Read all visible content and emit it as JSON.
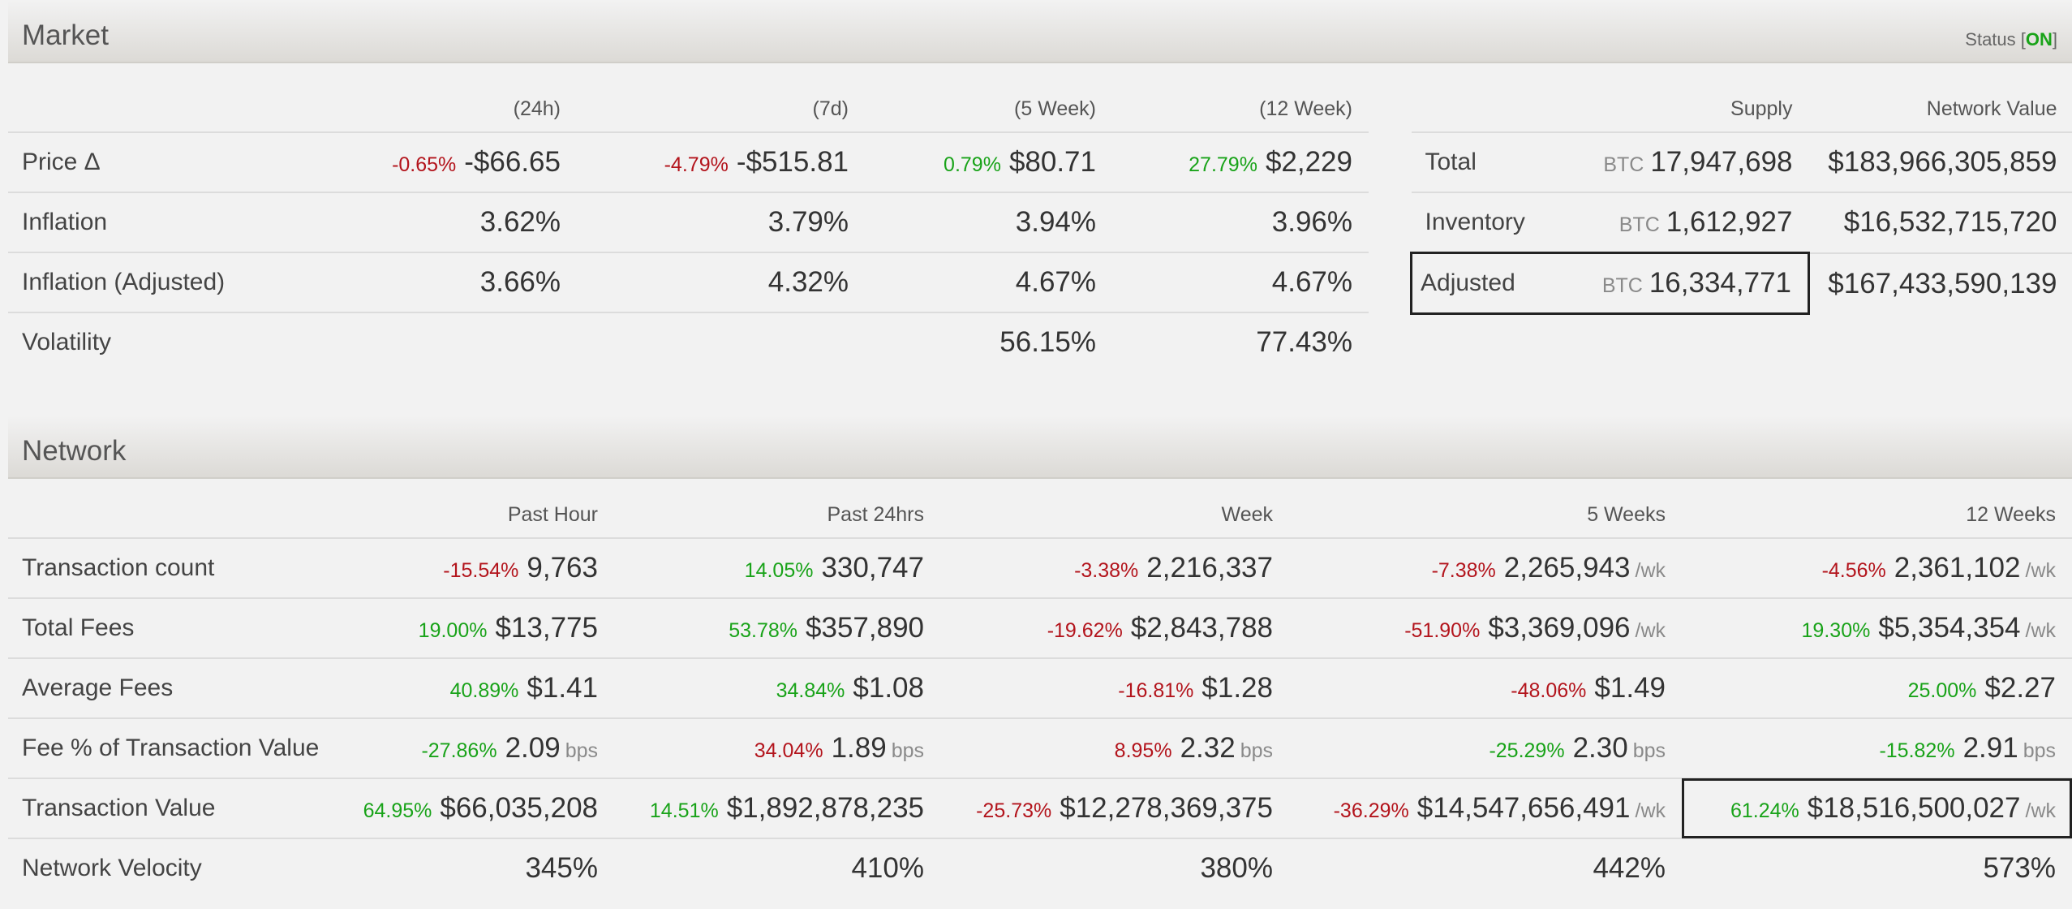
{
  "market": {
    "title": "Market",
    "status_prefix": "Status [",
    "status_value": "ON",
    "status_suffix": "]",
    "columns": [
      "(24h)",
      "(7d)",
      "(5 Week)",
      "(12 Week)"
    ],
    "rows": {
      "price": {
        "label": "Price Δ",
        "cells": [
          {
            "pct": "-0.65%",
            "value": "-$66.65"
          },
          {
            "pct": "-4.79%",
            "value": "-$515.81"
          },
          {
            "pct": "0.79%",
            "value": "$80.71"
          },
          {
            "pct": "27.79%",
            "value": "$2,229"
          }
        ]
      },
      "inflation": {
        "label": "Inflation",
        "values": [
          "3.62%",
          "3.79%",
          "3.94%",
          "3.96%"
        ]
      },
      "inflation_adjusted": {
        "label": "Inflation (Adjusted)",
        "values": [
          "3.66%",
          "4.32%",
          "4.67%",
          "4.67%"
        ]
      },
      "volatility": {
        "label": "Volatility",
        "values": [
          "",
          "",
          "56.15%",
          "77.43%"
        ]
      }
    }
  },
  "supply": {
    "columns": [
      "Supply",
      "Network Value"
    ],
    "unit": "BTC",
    "rows": {
      "total": {
        "label": "Total",
        "supply": "17,947,698",
        "network_value": "$183,966,305,859"
      },
      "inventory": {
        "label": "Inventory",
        "supply": "1,612,927",
        "network_value": "$16,532,715,720"
      },
      "adjusted": {
        "label": "Adjusted",
        "supply": "16,334,771",
        "network_value": "$167,433,590,139"
      }
    }
  },
  "network": {
    "title": "Network",
    "columns": [
      "Past Hour",
      "Past 24hrs",
      "Week",
      "5 Weeks",
      "12 Weeks"
    ],
    "per_week_suffix": "/wk",
    "bps_suffix": "bps",
    "rows": {
      "tx_count": {
        "label": "Transaction count",
        "cells": [
          {
            "pct": "-15.54%",
            "value": "9,763"
          },
          {
            "pct": "14.05%",
            "value": "330,747"
          },
          {
            "pct": "-3.38%",
            "value": "2,216,337"
          },
          {
            "pct": "-7.38%",
            "value": "2,265,943"
          },
          {
            "pct": "-4.56%",
            "value": "2,361,102"
          }
        ]
      },
      "total_fees": {
        "label": "Total Fees",
        "cells": [
          {
            "pct": "19.00%",
            "value": "$13,775"
          },
          {
            "pct": "53.78%",
            "value": "$357,890"
          },
          {
            "pct": "-19.62%",
            "value": "$2,843,788"
          },
          {
            "pct": "-51.90%",
            "value": "$3,369,096"
          },
          {
            "pct": "19.30%",
            "value": "$5,354,354"
          }
        ]
      },
      "avg_fees": {
        "label": "Average Fees",
        "cells": [
          {
            "pct": "40.89%",
            "value": "$1.41"
          },
          {
            "pct": "34.84%",
            "value": "$1.08"
          },
          {
            "pct": "-16.81%",
            "value": "$1.28"
          },
          {
            "pct": "-48.06%",
            "value": "$1.49"
          },
          {
            "pct": "25.00%",
            "value": "$2.27"
          }
        ]
      },
      "fee_pct": {
        "label": "Fee % of Transaction Value",
        "cells": [
          {
            "pct": "-27.86%",
            "value": "2.09"
          },
          {
            "pct": "34.04%",
            "value": "1.89"
          },
          {
            "pct": "8.95%",
            "value": "2.32"
          },
          {
            "pct": "-25.29%",
            "value": "2.30"
          },
          {
            "pct": "-15.82%",
            "value": "2.91"
          }
        ]
      },
      "tx_value": {
        "label": "Transaction Value",
        "cells": [
          {
            "pct": "64.95%",
            "value": "$66,035,208"
          },
          {
            "pct": "14.51%",
            "value": "$1,892,878,235"
          },
          {
            "pct": "-25.73%",
            "value": "$12,278,369,375"
          },
          {
            "pct": "-36.29%",
            "value": "$14,547,656,491"
          },
          {
            "pct": "61.24%",
            "value": "$18,516,500,027"
          }
        ]
      },
      "velocity": {
        "label": "Network Velocity",
        "values": [
          "345%",
          "410%",
          "380%",
          "442%",
          "573%"
        ]
      }
    }
  },
  "colors": {
    "positive": "#19a319",
    "negative": "#b3141c"
  }
}
